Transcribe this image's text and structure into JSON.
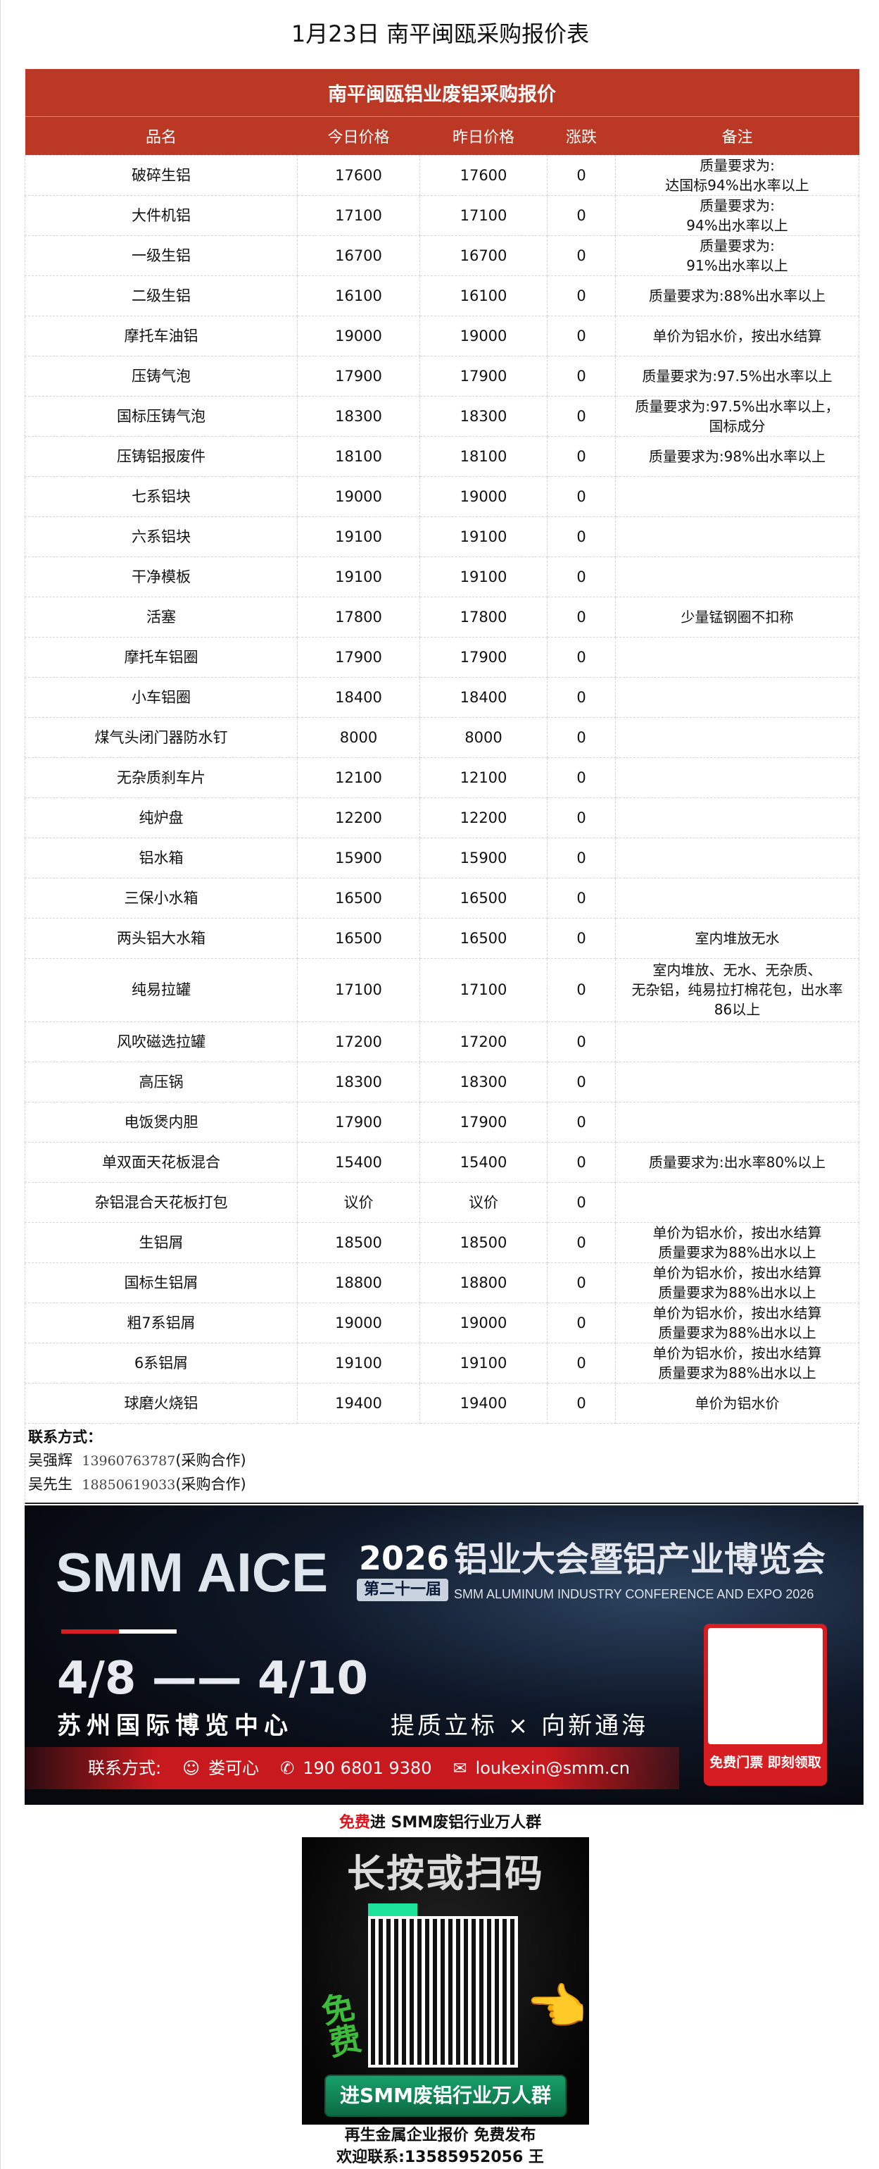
{
  "title": "1月23日 南平闽瓯采购报价表",
  "table": {
    "caption": "南平闽瓯铝业废铝采购报价",
    "headers": [
      "品名",
      "今日价格",
      "昨日价格",
      "涨跌",
      "备注"
    ],
    "rows": [
      [
        "破碎生铝",
        "17600",
        "17600",
        "0",
        "质量要求为:\n达国标94%出水率以上"
      ],
      [
        "大件机铝",
        "17100",
        "17100",
        "0",
        "质量要求为:\n94%出水率以上"
      ],
      [
        "一级生铝",
        "16700",
        "16700",
        "0",
        "质量要求为:\n91%出水率以上"
      ],
      [
        "二级生铝",
        "16100",
        "16100",
        "0",
        "质量要求为:88%出水率以上"
      ],
      [
        "摩托车油铝",
        "19000",
        "19000",
        "0",
        "单价为铝水价，按出水结算"
      ],
      [
        "压铸气泡",
        "17900",
        "17900",
        "0",
        "质量要求为:97.5%出水率以上"
      ],
      [
        "国标压铸气泡",
        "18300",
        "18300",
        "0",
        "质量要求为:97.5%出水率以上，\n国标成分"
      ],
      [
        "压铸铝报废件",
        "18100",
        "18100",
        "0",
        "质量要求为:98%出水率以上"
      ],
      [
        "七系铝块",
        "19000",
        "19000",
        "0",
        ""
      ],
      [
        "六系铝块",
        "19100",
        "19100",
        "0",
        ""
      ],
      [
        "干净模板",
        "19100",
        "19100",
        "0",
        ""
      ],
      [
        "活塞",
        "17800",
        "17800",
        "0",
        "少量锰钢圈不扣称"
      ],
      [
        "摩托车铝圈",
        "17900",
        "17900",
        "0",
        ""
      ],
      [
        "小车铝圈",
        "18400",
        "18400",
        "0",
        ""
      ],
      [
        "煤气头闭门器防水钉",
        "8000",
        "8000",
        "0",
        ""
      ],
      [
        "无杂质刹车片",
        "12100",
        "12100",
        "0",
        ""
      ],
      [
        "纯炉盘",
        "12200",
        "12200",
        "0",
        ""
      ],
      [
        "铝水箱",
        "15900",
        "15900",
        "0",
        ""
      ],
      [
        "三保小水箱",
        "16500",
        "16500",
        "0",
        ""
      ],
      [
        "两头铝大水箱",
        "16500",
        "16500",
        "0",
        "室内堆放无水"
      ],
      [
        "纯易拉罐",
        "17100",
        "17100",
        "0",
        "室内堆放、无水、无杂质、\n无杂铝，纯易拉打棉花包，出水率\n86以上"
      ],
      [
        "风吹磁选拉罐",
        "17200",
        "17200",
        "0",
        ""
      ],
      [
        "高压锅",
        "18300",
        "18300",
        "0",
        ""
      ],
      [
        "电饭煲内胆",
        "17900",
        "17900",
        "0",
        ""
      ],
      [
        "单双面天花板混合",
        "15400",
        "15400",
        "0",
        "质量要求为:出水率80%以上"
      ],
      [
        "杂铝混合天花板打包",
        "议价",
        "议价",
        "0",
        ""
      ],
      [
        "生铝屑",
        "18500",
        "18500",
        "0",
        "单价为铝水价，按出水结算\n质量要求为88%出水以上"
      ],
      [
        "国标生铝屑",
        "18800",
        "18800",
        "0",
        "单价为铝水价，按出水结算\n质量要求为88%出水以上"
      ],
      [
        "粗7系铝屑",
        "19000",
        "19000",
        "0",
        "单价为铝水价，按出水结算\n质量要求为88%出水以上"
      ],
      [
        "6系铝屑",
        "19100",
        "19100",
        "0",
        "单价为铝水价，按出水结算\n质量要求为88%出水以上"
      ],
      [
        "球磨火烧铝",
        "19400",
        "19400",
        "0",
        "单价为铝水价"
      ]
    ]
  },
  "contact": {
    "label": "联系方式：",
    "people": [
      {
        "name": "吴强辉",
        "phone": "13960763787",
        "note": "(采购合作)"
      },
      {
        "name": "吴先生",
        "phone": "18850619033",
        "note": "(采购合作)"
      }
    ]
  },
  "banner": {
    "brand": "SMM AICE",
    "year": "2026",
    "edition": "第二十一届",
    "title_cn": "铝业大会暨铝产业博览会",
    "title_en": "SMM ALUMINUM INDUSTRY CONFERENCE AND EXPO 2026",
    "dates": "4/8 —— 4/10",
    "venue": "苏州国际博览中心",
    "slogan": "提质立标 × 向新通海",
    "contact_label": "联系方式:",
    "contact_name": "娄可心",
    "contact_phone": "190 6801 9380",
    "contact_email": "loukexin@smm.cn",
    "qr_caption": "免费门票 即刻领取"
  },
  "group": {
    "free": "免费",
    "rest": "进 SMM废铝行业万人群"
  },
  "poster": {
    "headline": "长按或扫码",
    "free": "免费",
    "button": "进SMM废铝行业万人群"
  },
  "footer": {
    "line1": "再生金属企业报价 免费发布",
    "line2": "欢迎联系:13585952056 王"
  },
  "colors": {
    "header_red": "#bb3825",
    "accent_red": "#e0131b"
  }
}
